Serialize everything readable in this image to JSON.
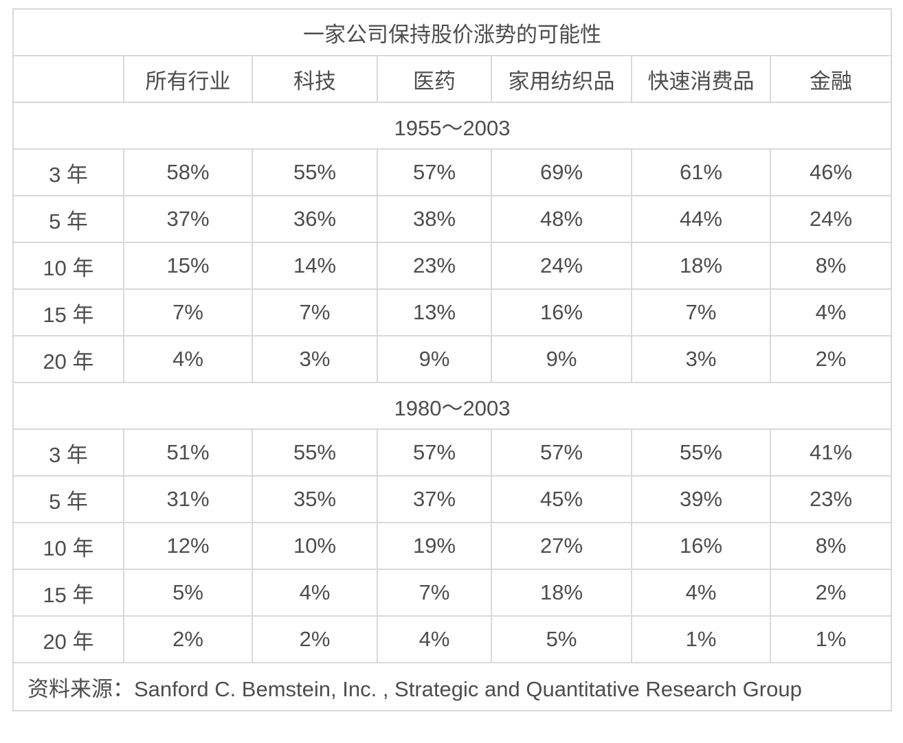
{
  "chart_data": {
    "type": "table",
    "title": "一家公司保持股价涨势的可能性",
    "columns": [
      "",
      "所有行业",
      "科技",
      "医药",
      "家用纺织品",
      "快速消费品",
      "金融"
    ],
    "sections": [
      {
        "label": "1955～2003",
        "rows": [
          {
            "label": "3 年",
            "values": [
              "58%",
              "55%",
              "57%",
              "69%",
              "61%",
              "46%"
            ]
          },
          {
            "label": "5 年",
            "values": [
              "37%",
              "36%",
              "38%",
              "48%",
              "44%",
              "24%"
            ]
          },
          {
            "label": "10 年",
            "values": [
              "15%",
              "14%",
              "23%",
              "24%",
              "18%",
              "8%"
            ]
          },
          {
            "label": "15 年",
            "values": [
              "7%",
              "7%",
              "13%",
              "16%",
              "7%",
              "4%"
            ]
          },
          {
            "label": "20 年",
            "values": [
              "4%",
              "3%",
              "9%",
              "9%",
              "3%",
              "2%"
            ]
          }
        ]
      },
      {
        "label": "1980～2003",
        "rows": [
          {
            "label": "3 年",
            "values": [
              "51%",
              "55%",
              "57%",
              "57%",
              "55%",
              "41%"
            ]
          },
          {
            "label": "5 年",
            "values": [
              "31%",
              "35%",
              "37%",
              "45%",
              "39%",
              "23%"
            ]
          },
          {
            "label": "10 年",
            "values": [
              "12%",
              "10%",
              "19%",
              "27%",
              "16%",
              "8%"
            ]
          },
          {
            "label": "15 年",
            "values": [
              "5%",
              "4%",
              "7%",
              "18%",
              "4%",
              "2%"
            ]
          },
          {
            "label": "20 年",
            "values": [
              "2%",
              "2%",
              "4%",
              "5%",
              "1%",
              "1%"
            ]
          }
        ]
      }
    ],
    "source": "资料来源：Sanford C. Bemstein, Inc. , Strategic and Quantitative Research Group",
    "layout_hints": {
      "grid": true,
      "title_position": "top-center",
      "section_rows_span_all_columns": true
    }
  },
  "colors": {
    "border": "#d9d9d9",
    "text": "#4d4d4d",
    "background": "#ffffff"
  }
}
